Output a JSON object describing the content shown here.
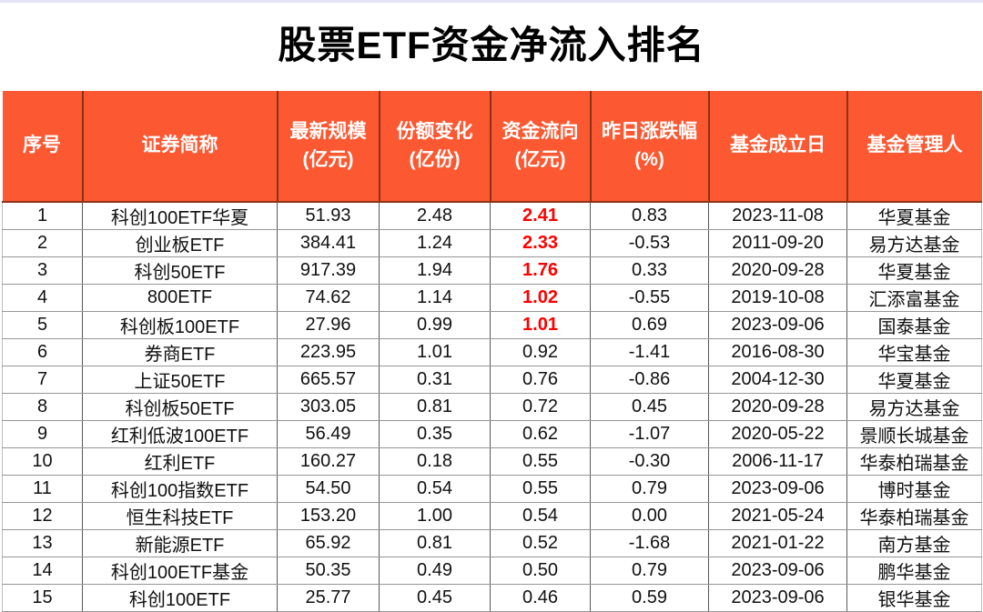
{
  "page": {
    "title": "股票ETF资金净流入排名"
  },
  "colors": {
    "header_bg": "#fc5831",
    "header_divider": "#8b3318",
    "flow_highlight_text": "#ff0000",
    "grid_horizontal": "#969696",
    "grid_vertical": "#595959",
    "top_strip": "#e4e4f4"
  },
  "table": {
    "flow_column_index": 4,
    "flow_bold_rows": 5,
    "columns": [
      {
        "label": "序号",
        "sub": ""
      },
      {
        "label": "证券简称",
        "sub": ""
      },
      {
        "label": "最新规模",
        "sub": "(亿元)"
      },
      {
        "label": "份额变化",
        "sub": "(亿份)"
      },
      {
        "label": "资金流向",
        "sub": "(亿元)"
      },
      {
        "label": "昨日涨跌幅",
        "sub": "(%)"
      },
      {
        "label": "基金成立日",
        "sub": ""
      },
      {
        "label": "基金管理人",
        "sub": ""
      }
    ],
    "rows": [
      [
        "1",
        "科创100ETF华夏",
        "51.93",
        "2.48",
        "2.41",
        "0.83",
        "2023-11-08",
        "华夏基金"
      ],
      [
        "2",
        "创业板ETF",
        "384.41",
        "1.24",
        "2.33",
        "-0.53",
        "2011-09-20",
        "易方达基金"
      ],
      [
        "3",
        "科创50ETF",
        "917.39",
        "1.94",
        "1.76",
        "0.33",
        "2020-09-28",
        "华夏基金"
      ],
      [
        "4",
        "800ETF",
        "74.62",
        "1.14",
        "1.02",
        "-0.55",
        "2019-10-08",
        "汇添富基金"
      ],
      [
        "5",
        "科创板100ETF",
        "27.96",
        "0.99",
        "1.01",
        "0.69",
        "2023-09-06",
        "国泰基金"
      ],
      [
        "6",
        "券商ETF",
        "223.95",
        "1.01",
        "0.92",
        "-1.41",
        "2016-08-30",
        "华宝基金"
      ],
      [
        "7",
        "上证50ETF",
        "665.57",
        "0.31",
        "0.76",
        "-0.86",
        "2004-12-30",
        "华夏基金"
      ],
      [
        "8",
        "科创板50ETF",
        "303.05",
        "0.81",
        "0.72",
        "0.45",
        "2020-09-28",
        "易方达基金"
      ],
      [
        "9",
        "红利低波100ETF",
        "56.49",
        "0.35",
        "0.62",
        "-1.07",
        "2020-05-22",
        "景顺长城基金"
      ],
      [
        "10",
        "红利ETF",
        "160.27",
        "0.18",
        "0.55",
        "-0.30",
        "2006-11-17",
        "华泰柏瑞基金"
      ],
      [
        "11",
        "科创100指数ETF",
        "54.50",
        "0.54",
        "0.55",
        "0.79",
        "2023-09-06",
        "博时基金"
      ],
      [
        "12",
        "恒生科技ETF",
        "153.20",
        "1.00",
        "0.54",
        "0.00",
        "2021-05-24",
        "华泰柏瑞基金"
      ],
      [
        "13",
        "新能源ETF",
        "65.92",
        "0.81",
        "0.52",
        "-1.68",
        "2021-01-22",
        "南方基金"
      ],
      [
        "14",
        "科创100ETF基金",
        "50.35",
        "0.49",
        "0.50",
        "0.79",
        "2023-09-06",
        "鹏华基金"
      ],
      [
        "15",
        "科创100ETF",
        "25.77",
        "0.45",
        "0.46",
        "0.59",
        "2023-09-06",
        "银华基金"
      ]
    ]
  },
  "chart_data": {
    "type": "table",
    "title": "股票ETF资金净流入排名",
    "columns": [
      "序号",
      "证券简称",
      "最新规模(亿元)",
      "份额变化(亿份)",
      "资金流向(亿元)",
      "昨日涨跌幅(%)",
      "基金成立日",
      "基金管理人"
    ],
    "rows": [
      [
        1,
        "科创100ETF华夏",
        51.93,
        2.48,
        2.41,
        0.83,
        "2023-11-08",
        "华夏基金"
      ],
      [
        2,
        "创业板ETF",
        384.41,
        1.24,
        2.33,
        -0.53,
        "2011-09-20",
        "易方达基金"
      ],
      [
        3,
        "科创50ETF",
        917.39,
        1.94,
        1.76,
        0.33,
        "2020-09-28",
        "华夏基金"
      ],
      [
        4,
        "800ETF",
        74.62,
        1.14,
        1.02,
        -0.55,
        "2019-10-08",
        "汇添富基金"
      ],
      [
        5,
        "科创板100ETF",
        27.96,
        0.99,
        1.01,
        0.69,
        "2023-09-06",
        "国泰基金"
      ],
      [
        6,
        "券商ETF",
        223.95,
        1.01,
        0.92,
        -1.41,
        "2016-08-30",
        "华宝基金"
      ],
      [
        7,
        "上证50ETF",
        665.57,
        0.31,
        0.76,
        -0.86,
        "2004-12-30",
        "华夏基金"
      ],
      [
        8,
        "科创板50ETF",
        303.05,
        0.81,
        0.72,
        0.45,
        "2020-09-28",
        "易方达基金"
      ],
      [
        9,
        "红利低波100ETF",
        56.49,
        0.35,
        0.62,
        -1.07,
        "2020-05-22",
        "景顺长城基金"
      ],
      [
        10,
        "红利ETF",
        160.27,
        0.18,
        0.55,
        -0.3,
        "2006-11-17",
        "华泰柏瑞基金"
      ],
      [
        11,
        "科创100指数ETF",
        54.5,
        0.54,
        0.55,
        0.79,
        "2023-09-06",
        "博时基金"
      ],
      [
        12,
        "恒生科技ETF",
        153.2,
        1.0,
        0.54,
        0.0,
        "2021-05-24",
        "华泰柏瑞基金"
      ],
      [
        13,
        "新能源ETF",
        65.92,
        0.81,
        0.52,
        -1.68,
        "2021-01-22",
        "南方基金"
      ],
      [
        14,
        "科创100ETF基金",
        50.35,
        0.49,
        0.5,
        0.79,
        "2023-09-06",
        "鹏华基金"
      ],
      [
        15,
        "科创100ETF",
        25.77,
        0.45,
        0.46,
        0.59,
        "2023-09-06",
        "银华基金"
      ]
    ]
  }
}
